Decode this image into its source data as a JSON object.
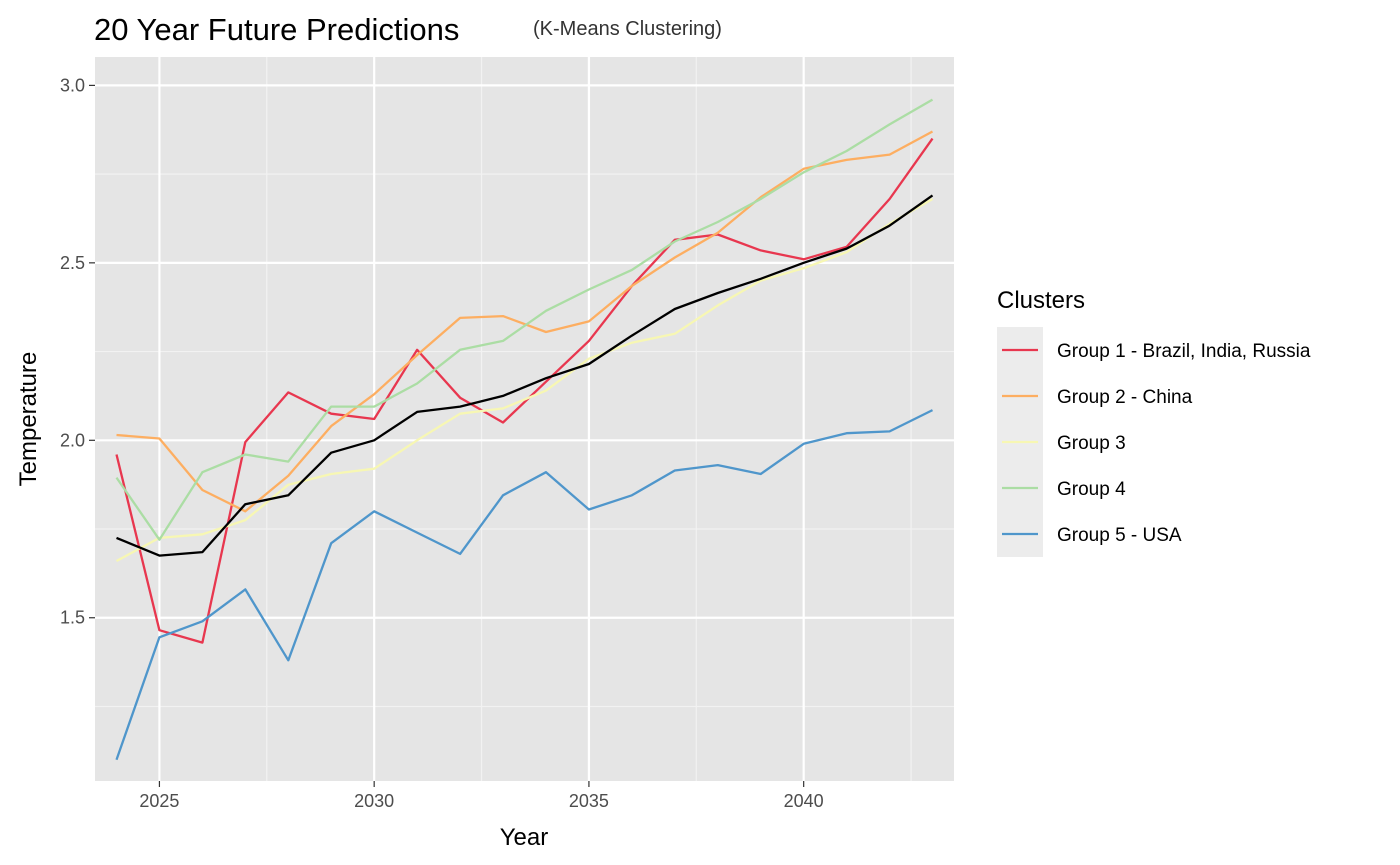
{
  "chart_data": {
    "type": "line",
    "title": "20 Year Future Predictions",
    "subtitle": "(K-Means Clustering)",
    "xlabel": "Year",
    "ylabel": "Temperature",
    "xlim": [
      2023.5,
      2043.5
    ],
    "ylim": [
      1.04,
      3.08
    ],
    "x_ticks": [
      2025,
      2030,
      2035,
      2040
    ],
    "x_tick_labels": [
      "2025",
      "2030",
      "2035",
      "2040"
    ],
    "y_ticks": [
      1.5,
      2.0,
      2.5,
      3.0
    ],
    "y_tick_labels": [
      "1.5",
      "2.0",
      "2.5",
      "3.0"
    ],
    "grid": true,
    "legend_placement": "right",
    "legend_title": "Clusters",
    "x": [
      2024,
      2025,
      2026,
      2027,
      2028,
      2029,
      2030,
      2031,
      2032,
      2033,
      2034,
      2035,
      2036,
      2037,
      2038,
      2039,
      2040,
      2041,
      2042,
      2043
    ],
    "series": [
      {
        "name": "Group 1 - Brazil, India, Russia",
        "color": "#e8374f",
        "values": [
          1.96,
          1.465,
          1.43,
          1.995,
          2.135,
          2.075,
          2.06,
          2.255,
          2.12,
          2.05,
          2.165,
          2.28,
          2.435,
          2.565,
          2.58,
          2.535,
          2.51,
          2.545,
          2.68,
          2.85
        ]
      },
      {
        "name": "Group 2 - China",
        "color": "#fdae61",
        "values": [
          2.015,
          2.005,
          1.86,
          1.8,
          1.9,
          2.04,
          2.13,
          2.24,
          2.345,
          2.35,
          2.305,
          2.335,
          2.435,
          2.515,
          2.585,
          2.685,
          2.765,
          2.79,
          2.805,
          2.87
        ]
      },
      {
        "name": "Group 3",
        "color": "#f7f7b3",
        "values": [
          1.66,
          1.725,
          1.735,
          1.775,
          1.875,
          1.905,
          1.92,
          2.0,
          2.075,
          2.09,
          2.14,
          2.23,
          2.275,
          2.3,
          2.38,
          2.45,
          2.485,
          2.53,
          2.61,
          2.68
        ]
      },
      {
        "name": "Group 4",
        "color": "#abdda4",
        "values": [
          1.895,
          1.72,
          1.91,
          1.96,
          1.94,
          2.095,
          2.095,
          2.16,
          2.255,
          2.28,
          2.365,
          2.425,
          2.48,
          2.56,
          2.615,
          2.68,
          2.755,
          2.815,
          2.89,
          2.96
        ]
      },
      {
        "name": "Group 5 - USA",
        "color": "#4f96cb",
        "values": [
          1.1,
          1.445,
          1.49,
          1.58,
          1.38,
          1.71,
          1.8,
          1.74,
          1.68,
          1.845,
          1.91,
          1.805,
          1.845,
          1.915,
          1.93,
          1.905,
          1.99,
          2.02,
          2.025,
          2.085
        ]
      }
    ],
    "mean_line": {
      "color": "#000000",
      "values": [
        1.725,
        1.675,
        1.685,
        1.82,
        1.845,
        1.965,
        2.0,
        2.08,
        2.095,
        2.125,
        2.175,
        2.215,
        2.295,
        2.37,
        2.415,
        2.455,
        2.5,
        2.54,
        2.605,
        2.69
      ]
    }
  }
}
